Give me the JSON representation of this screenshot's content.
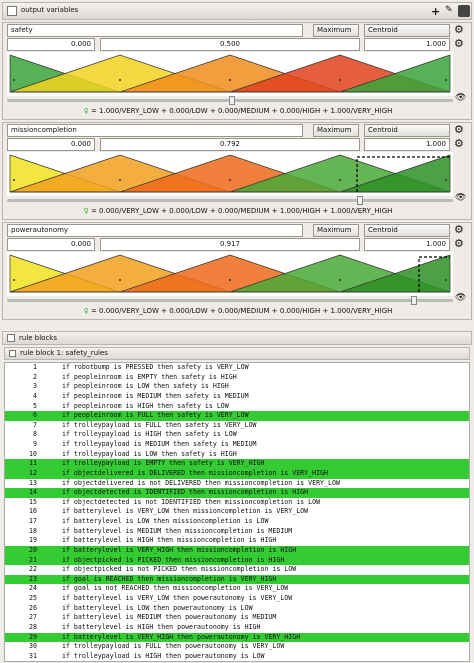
{
  "output_panel": {
    "title": "output variables"
  },
  "variables": [
    {
      "name": "safety",
      "minimum": "0.000",
      "value": "0.500",
      "maximum": "1.000",
      "aggregation": "Maximum",
      "defuzzifier": "Centroid",
      "formula": "= 1.000/VERY_LOW + 0.000/LOW + 0.000/MEDIUM + 0.000/HIGH + 1.000/VERY_HIGH"
    },
    {
      "name": "missioncompletion",
      "minimum": "0.000",
      "value": "0.792",
      "maximum": "1.000",
      "aggregation": "Maximum",
      "defuzzifier": "Centroid",
      "formula": "= 0.000/VERY_LOW + 0.000/LOW + 0.000/MEDIUM + 1.000/HIGH + 1.000/VERY_HIGH"
    },
    {
      "name": "powerautonomy",
      "minimum": "0.000",
      "value": "0.917",
      "maximum": "1.000",
      "aggregation": "Maximum",
      "defuzzifier": "Centroid",
      "formula": "= 0.000/VERY_LOW + 0.000/LOW + 0.000/MEDIUM + 0.000/HIGH + 1.000/VERY_HIGH"
    }
  ],
  "rule_panel": {
    "title": "rule blocks",
    "block_title": "rule block 1: safety_rules"
  },
  "rules": [
    {
      "number": "1",
      "text": "if robotbump is PRESSED then safety is VERY_LOW",
      "highlighted": false
    },
    {
      "number": "2",
      "text": "if peopleinroom is EMPTY then safety is HIGH",
      "highlighted": false
    },
    {
      "number": "3",
      "text": "if peopleinroom is LOW then safety is HIGH",
      "highlighted": false
    },
    {
      "number": "4",
      "text": "if peopleinroom is MEDIUM then safety is MEDIUM",
      "highlighted": false
    },
    {
      "number": "5",
      "text": "if peopleinroom is HIGH then safety is LOW",
      "highlighted": false
    },
    {
      "number": "6",
      "text": "if peopleinroom is FULL then safety is VERY_LOW",
      "highlighted": true
    },
    {
      "number": "7",
      "text": "if trolleypayload is FULL then safety is VERY_LOW",
      "highlighted": false
    },
    {
      "number": "8",
      "text": "if trolleypayload is HIGH then safety is LOW",
      "highlighted": false
    },
    {
      "number": "9",
      "text": "if trolleypayload is MEDIUM then safety is MEDIUM",
      "highlighted": false
    },
    {
      "number": "10",
      "text": "if trolleypayload is LOW then safety is HIGH",
      "highlighted": false
    },
    {
      "number": "11",
      "text": "if trolleypayload is EMPTY then safety is VERY_HIGH",
      "highlighted": true
    },
    {
      "number": "12",
      "text": "if objectdelivered is DELIVERED then missioncompletion is VERY_HIGH",
      "highlighted": true
    },
    {
      "number": "13",
      "text": "if objectdelivered is not DELIVERED then missioncompletion is VERY_LOW",
      "highlighted": false
    },
    {
      "number": "14",
      "text": "if objectdetected is IDENTIFIED then missioncompletion is HIGH",
      "highlighted": true
    },
    {
      "number": "15",
      "text": "if objectdetected is not IDENTIFIED then missioncompletion is LOW",
      "highlighted": false
    },
    {
      "number": "16",
      "text": "if batterylevel is VERY_LOW then missioncompletion is VERY_LOW",
      "highlighted": false
    },
    {
      "number": "17",
      "text": "if batterylevel is LOW then missioncompletion is LOW",
      "highlighted": false
    },
    {
      "number": "18",
      "text": "if batterylevel is MEDIUM then missioncompletion is MEDIUM",
      "highlighted": false
    },
    {
      "number": "19",
      "text": "if batterylevel is HIGH then missioncompletion is HIGH",
      "highlighted": false
    },
    {
      "number": "20",
      "text": "if batterylevel is VERY_HIGH then missioncompletion is HIGH",
      "highlighted": true
    },
    {
      "number": "21",
      "text": "if objectpicked is PICKED then missioncompletion is HIGH",
      "highlighted": true
    },
    {
      "number": "22",
      "text": "if objectpicked is not PICKED then missioncompletion is LOW",
      "highlighted": false
    },
    {
      "number": "23",
      "text": "if goal is REACHED then missioncompletion is VERY_HIGH",
      "highlighted": true
    },
    {
      "number": "24",
      "text": "if goal is not REACHED then missioncompletion is VERY_LOW",
      "highlighted": false
    },
    {
      "number": "25",
      "text": "if batterylevel is VERY_LOW then powerautonomy is VERY_LOW",
      "highlighted": false
    },
    {
      "number": "26",
      "text": "if batterylevel is LOW then powerautonomy is LOW",
      "highlighted": false
    },
    {
      "number": "27",
      "text": "if batterylevel is MEDIUM then powerautonomy is MEDIUM",
      "highlighted": false
    },
    {
      "number": "28",
      "text": "if batterylevel is HIGH then powerautonomy is HIGH",
      "highlighted": false
    },
    {
      "number": "29",
      "text": "if batterylevel is VERY_HIGH then powerautonomy is VERY_HIGH",
      "highlighted": true
    },
    {
      "number": "30",
      "text": "if trolleypayload is FULL then powerautonomy is VERY_LOW",
      "highlighted": false
    },
    {
      "number": "31",
      "text": "if trolleypayload is HIGH then powerautonomy is LOW",
      "highlighted": false
    }
  ]
}
